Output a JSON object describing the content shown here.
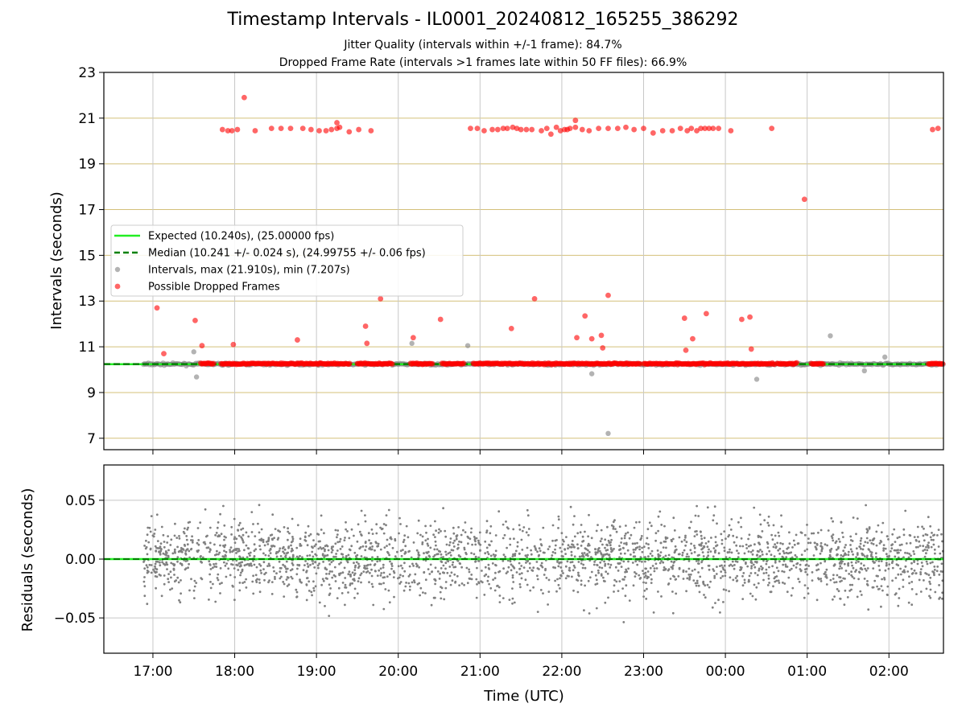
{
  "chart_data": [
    {
      "type": "scatter",
      "title": "Timestamp Intervals - IL0001_20240812_165255_386292",
      "subtitle_lines": [
        "Jitter Quality (intervals within +/-1 frame): 84.7%",
        "Dropped Frame Rate (intervals >1 frames late within 50 FF files): 66.9%"
      ],
      "xlabel": "",
      "ylabel": "Intervals (seconds)",
      "xlim": [
        "16:24",
        "02:40"
      ],
      "ylim": [
        6.5,
        23
      ],
      "y_ticks": [
        7,
        9,
        11,
        13,
        15,
        17,
        19,
        21,
        23
      ],
      "x_ticks": [
        "17:00",
        "18:00",
        "19:00",
        "20:00",
        "21:00",
        "22:00",
        "23:00",
        "00:00",
        "01:00",
        "02:00"
      ],
      "grid": true,
      "legend_position": "center-left",
      "legend": [
        "Expected (10.240s), (25.00000 fps)",
        "Median (10.241 +/- 0.024 s), (24.99755 +/- 0.06 fps)",
        "Intervals, max (21.910s), min (7.207s)",
        "Possible Dropped Frames"
      ],
      "expected_interval": 10.24,
      "median_interval": 10.241,
      "colors": {
        "expected": "#22ee22",
        "median": "#008000",
        "intervals": "#808080",
        "dropped": "#ff0000",
        "grid_h": "#d4c07a",
        "grid_v": "#c8c8c8"
      },
      "series": [
        {
          "name": "Intervals, max (21.910s), min (7.207s)",
          "note_band": {
            "x_start": "16:53",
            "x_end": "02:40",
            "y": 10.24
          },
          "points": [
            {
              "x": "17:30",
              "y": 10.78
            },
            {
              "x": "17:32",
              "y": 9.68
            },
            {
              "x": "20:10",
              "y": 11.15
            },
            {
              "x": "20:51",
              "y": 11.05
            },
            {
              "x": "22:22",
              "y": 9.82
            },
            {
              "x": "22:34",
              "y": 7.21
            },
            {
              "x": "00:23",
              "y": 9.58
            },
            {
              "x": "01:17",
              "y": 11.48
            },
            {
              "x": "01:42",
              "y": 9.95
            },
            {
              "x": "01:57",
              "y": 10.55
            }
          ]
        },
        {
          "name": "Possible Dropped Frames",
          "band_segments": [
            [
              "17:35",
              "17:45"
            ],
            [
              "17:50",
              "19:25"
            ],
            [
              "19:30",
              "19:56"
            ],
            [
              "20:09",
              "20:25"
            ],
            [
              "20:32",
              "20:48"
            ],
            [
              "20:55",
              "22:58"
            ],
            [
              "23:00",
              "00:36"
            ],
            [
              "00:38",
              "00:53"
            ],
            [
              "01:03",
              "01:12"
            ],
            [
              "02:29",
              "02:40"
            ]
          ],
          "band_y": 10.26,
          "points": [
            {
              "x": "17:51",
              "y": 20.5
            },
            {
              "x": "17:55",
              "y": 20.45
            },
            {
              "x": "17:58",
              "y": 20.45
            },
            {
              "x": "18:02",
              "y": 20.5
            },
            {
              "x": "18:07",
              "y": 21.9
            },
            {
              "x": "18:15",
              "y": 20.45
            },
            {
              "x": "18:27",
              "y": 20.55
            },
            {
              "x": "18:34",
              "y": 20.55
            },
            {
              "x": "18:41",
              "y": 20.55
            },
            {
              "x": "18:50",
              "y": 20.55
            },
            {
              "x": "18:56",
              "y": 20.5
            },
            {
              "x": "19:02",
              "y": 20.45
            },
            {
              "x": "19:07",
              "y": 20.45
            },
            {
              "x": "19:11",
              "y": 20.5
            },
            {
              "x": "19:15",
              "y": 20.55
            },
            {
              "x": "19:15",
              "y": 20.8
            },
            {
              "x": "19:17",
              "y": 20.6
            },
            {
              "x": "19:24",
              "y": 20.4
            },
            {
              "x": "19:31",
              "y": 20.5
            },
            {
              "x": "19:40",
              "y": 20.45
            },
            {
              "x": "20:53",
              "y": 20.55
            },
            {
              "x": "20:58",
              "y": 20.55
            },
            {
              "x": "21:03",
              "y": 20.45
            },
            {
              "x": "21:09",
              "y": 20.5
            },
            {
              "x": "21:13",
              "y": 20.5
            },
            {
              "x": "21:17",
              "y": 20.55
            },
            {
              "x": "21:20",
              "y": 20.55
            },
            {
              "x": "21:24",
              "y": 20.6
            },
            {
              "x": "21:27",
              "y": 20.55
            },
            {
              "x": "21:30",
              "y": 20.5
            },
            {
              "x": "21:34",
              "y": 20.5
            },
            {
              "x": "21:38",
              "y": 20.5
            },
            {
              "x": "21:45",
              "y": 20.45
            },
            {
              "x": "21:49",
              "y": 20.55
            },
            {
              "x": "21:52",
              "y": 20.3
            },
            {
              "x": "21:56",
              "y": 20.6
            },
            {
              "x": "21:59",
              "y": 20.45
            },
            {
              "x": "22:02",
              "y": 20.5
            },
            {
              "x": "22:04",
              "y": 20.5
            },
            {
              "x": "22:06",
              "y": 20.55
            },
            {
              "x": "22:10",
              "y": 20.6
            },
            {
              "x": "22:10",
              "y": 20.9
            },
            {
              "x": "22:15",
              "y": 20.5
            },
            {
              "x": "22:20",
              "y": 20.45
            },
            {
              "x": "22:27",
              "y": 20.55
            },
            {
              "x": "22:34",
              "y": 20.55
            },
            {
              "x": "22:41",
              "y": 20.55
            },
            {
              "x": "22:47",
              "y": 20.6
            },
            {
              "x": "22:53",
              "y": 20.5
            },
            {
              "x": "23:00",
              "y": 20.55
            },
            {
              "x": "23:07",
              "y": 20.35
            },
            {
              "x": "23:14",
              "y": 20.45
            },
            {
              "x": "23:21",
              "y": 20.45
            },
            {
              "x": "23:27",
              "y": 20.55
            },
            {
              "x": "23:32",
              "y": 20.45
            },
            {
              "x": "23:35",
              "y": 20.55
            },
            {
              "x": "23:39",
              "y": 20.45
            },
            {
              "x": "23:42",
              "y": 20.55
            },
            {
              "x": "23:45",
              "y": 20.55
            },
            {
              "x": "23:48",
              "y": 20.55
            },
            {
              "x": "23:51",
              "y": 20.55
            },
            {
              "x": "23:55",
              "y": 20.55
            },
            {
              "x": "00:04",
              "y": 20.45
            },
            {
              "x": "00:34",
              "y": 20.55
            },
            {
              "x": "02:32",
              "y": 20.5
            },
            {
              "x": "02:36",
              "y": 20.55
            },
            {
              "x": "00:58",
              "y": 17.45
            },
            {
              "x": "17:03",
              "y": 12.7
            },
            {
              "x": "17:08",
              "y": 10.7
            },
            {
              "x": "17:31",
              "y": 12.15
            },
            {
              "x": "17:36",
              "y": 11.05
            },
            {
              "x": "17:59",
              "y": 11.1
            },
            {
              "x": "18:46",
              "y": 11.3
            },
            {
              "x": "19:36",
              "y": 11.9
            },
            {
              "x": "19:37",
              "y": 11.15
            },
            {
              "x": "19:47",
              "y": 13.1
            },
            {
              "x": "20:11",
              "y": 11.4
            },
            {
              "x": "20:31",
              "y": 12.2
            },
            {
              "x": "21:23",
              "y": 11.8
            },
            {
              "x": "21:40",
              "y": 13.1
            },
            {
              "x": "22:11",
              "y": 11.4
            },
            {
              "x": "22:17",
              "y": 12.35
            },
            {
              "x": "22:22",
              "y": 11.35
            },
            {
              "x": "22:29",
              "y": 11.5
            },
            {
              "x": "22:30",
              "y": 10.95
            },
            {
              "x": "22:34",
              "y": 13.25
            },
            {
              "x": "23:30",
              "y": 12.25
            },
            {
              "x": "23:31",
              "y": 10.85
            },
            {
              "x": "23:36",
              "y": 11.35
            },
            {
              "x": "23:46",
              "y": 12.45
            },
            {
              "x": "00:12",
              "y": 12.2
            },
            {
              "x": "00:18",
              "y": 12.3
            },
            {
              "x": "00:19",
              "y": 10.9
            }
          ]
        }
      ]
    },
    {
      "type": "scatter",
      "title": "",
      "xlabel": "Time (UTC)",
      "ylabel": "Residuals (seconds)",
      "xlim": [
        "16:24",
        "02:40"
      ],
      "ylim": [
        -0.08,
        0.08
      ],
      "y_ticks": [
        0.05,
        0.0,
        -0.05
      ],
      "y_tick_labels": [
        "0.05",
        "0.00",
        "−0.05"
      ],
      "x_ticks": [
        "17:00",
        "18:00",
        "19:00",
        "20:00",
        "21:00",
        "22:00",
        "23:00",
        "00:00",
        "01:00",
        "02:00"
      ],
      "grid": true,
      "series": [
        {
          "name": "",
          "x_range": [
            "16:53",
            "02:40"
          ],
          "approx_count": 2600,
          "spread_sd": 0.022
        }
      ]
    }
  ]
}
